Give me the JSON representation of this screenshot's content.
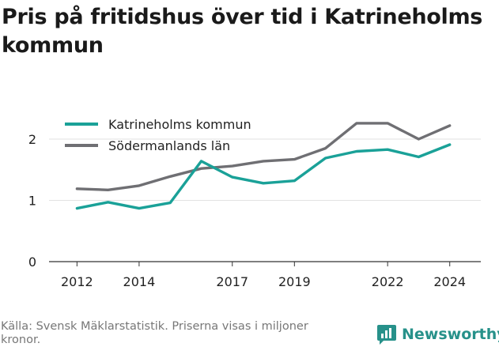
{
  "title": "Pris på fritidshus över tid i Katrineholms kommun",
  "source": "Källa: Svensk Mäklarstatistik. Priserna visas i miljoner kronor.",
  "brand": {
    "name": "Newsworthy",
    "color": "#27918a",
    "icon": "newsworthy-logo-icon"
  },
  "chart_data": {
    "type": "line",
    "title": "Pris på fritidshus över tid i Katrineholms kommun",
    "xlabel": "",
    "ylabel": "",
    "x": [
      2012,
      2013,
      2014,
      2015,
      2016,
      2017,
      2018,
      2019,
      2020,
      2021,
      2022,
      2023,
      2024
    ],
    "x_ticks": [
      "2012",
      "2014",
      "2017",
      "2019",
      "2022",
      "2024"
    ],
    "y_ticks": [
      "0",
      "1",
      "2"
    ],
    "ylim": [
      0,
      2.3
    ],
    "grid": true,
    "legend_position": "top-left",
    "series": [
      {
        "name": "Katrineholms kommun",
        "color": "#1aa198",
        "values": [
          0.87,
          0.97,
          0.87,
          0.96,
          1.64,
          1.38,
          1.28,
          1.32,
          1.69,
          1.8,
          1.83,
          1.71,
          1.91
        ]
      },
      {
        "name": "Södermanlands län",
        "color": "#6f6f73",
        "values": [
          1.19,
          1.17,
          1.24,
          1.39,
          1.52,
          1.56,
          1.64,
          1.67,
          1.85,
          2.26,
          2.26,
          2.0,
          2.22
        ]
      }
    ]
  }
}
